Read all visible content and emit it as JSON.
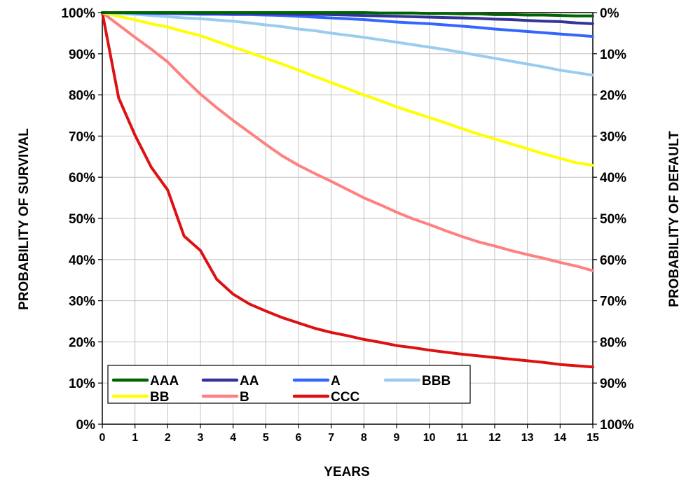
{
  "chart_data": {
    "type": "line",
    "title": "",
    "xlabel": "YEARS",
    "ylabel": "PROBABILITY OF SURVIVAL",
    "y2label": "PROBABILITY OF DEFAULT",
    "xlim": [
      0,
      15
    ],
    "ylim": [
      0,
      100
    ],
    "x_ticks": [
      "0",
      "1",
      "2",
      "3",
      "4",
      "5",
      "6",
      "7",
      "8",
      "9",
      "10",
      "11",
      "12",
      "13",
      "14",
      "15"
    ],
    "y_ticks": [
      "0%",
      "10%",
      "20%",
      "30%",
      "40%",
      "50%",
      "60%",
      "70%",
      "80%",
      "90%",
      "100%"
    ],
    "y2_ticks": [
      "100%",
      "90%",
      "80%",
      "70%",
      "60%",
      "50%",
      "40%",
      "30%",
      "20%",
      "10%",
      "0%"
    ],
    "grid": true,
    "legend_position": "bottom-left",
    "x": [
      0,
      0.5,
      1,
      1.5,
      2,
      2.5,
      3,
      3.5,
      4,
      4.5,
      5,
      5.5,
      6,
      6.5,
      7,
      7.5,
      8,
      8.5,
      9,
      9.5,
      10,
      10.5,
      11,
      11.5,
      12,
      12.5,
      13,
      13.5,
      14,
      14.5,
      15
    ],
    "series": [
      {
        "name": "AAA",
        "color": "#006400",
        "values": [
          100,
          100,
          100,
          100,
          100,
          100,
          100,
          100,
          100,
          100,
          100,
          100,
          100,
          100,
          100,
          100,
          100,
          99.9,
          99.9,
          99.9,
          99.8,
          99.8,
          99.7,
          99.7,
          99.5,
          99.5,
          99.4,
          99.4,
          99.3,
          99.2,
          99.2
        ]
      },
      {
        "name": "AA",
        "color": "#333399",
        "values": [
          100,
          100,
          100,
          100,
          99.9,
          99.9,
          99.8,
          99.8,
          99.8,
          99.8,
          99.7,
          99.7,
          99.6,
          99.6,
          99.5,
          99.4,
          99.3,
          99.2,
          99.1,
          99.0,
          98.9,
          98.8,
          98.7,
          98.6,
          98.4,
          98.3,
          98.1,
          97.9,
          97.8,
          97.5,
          97.3
        ]
      },
      {
        "name": "A",
        "color": "#3366FF",
        "values": [
          100,
          100,
          99.9,
          99.8,
          99.8,
          99.7,
          99.6,
          99.6,
          99.5,
          99.5,
          99.4,
          99.3,
          99.1,
          98.9,
          98.7,
          98.5,
          98.3,
          98.0,
          97.7,
          97.5,
          97.3,
          97.0,
          96.7,
          96.4,
          96.0,
          95.7,
          95.4,
          95.1,
          94.8,
          94.5,
          94.2
        ]
      },
      {
        "name": "BBB",
        "color": "#99CCEE",
        "values": [
          100,
          99.8,
          99.6,
          99.3,
          99.0,
          98.7,
          98.5,
          98.2,
          97.9,
          97.5,
          97.0,
          96.6,
          96.0,
          95.6,
          95.0,
          94.5,
          94.0,
          93.4,
          92.8,
          92.2,
          91.6,
          91.0,
          90.3,
          89.6,
          88.9,
          88.2,
          87.5,
          86.8,
          86.0,
          85.4,
          84.8
        ]
      },
      {
        "name": "BB",
        "color": "#FFFF00",
        "values": [
          100,
          99.1,
          98.2,
          97.3,
          96.5,
          95.4,
          94.4,
          93.0,
          91.6,
          90.3,
          88.9,
          87.5,
          86.0,
          84.5,
          83.0,
          81.5,
          80.0,
          78.6,
          77.1,
          75.8,
          74.5,
          73.2,
          71.8,
          70.5,
          69.3,
          68.1,
          66.9,
          65.7,
          64.6,
          63.5,
          62.9
        ]
      },
      {
        "name": "B",
        "color": "#FF8080",
        "values": [
          100,
          97.0,
          94.0,
          91.1,
          88.0,
          84.0,
          80.2,
          76.9,
          73.8,
          70.9,
          68.0,
          65.2,
          62.9,
          60.9,
          59.0,
          57.0,
          55.0,
          53.3,
          51.5,
          49.9,
          48.5,
          47.0,
          45.6,
          44.3,
          43.3,
          42.2,
          41.2,
          40.3,
          39.3,
          38.4,
          37.3
        ]
      },
      {
        "name": "CCC",
        "color": "#DD1111",
        "values": [
          100,
          79.3,
          70.2,
          62.4,
          56.9,
          45.7,
          42.2,
          35.2,
          31.6,
          29.2,
          27.5,
          25.9,
          24.6,
          23.3,
          22.3,
          21.5,
          20.6,
          19.9,
          19.1,
          18.6,
          18.0,
          17.5,
          17.0,
          16.6,
          16.2,
          15.8,
          15.4,
          15.0,
          14.5,
          14.2,
          13.9
        ]
      }
    ]
  }
}
